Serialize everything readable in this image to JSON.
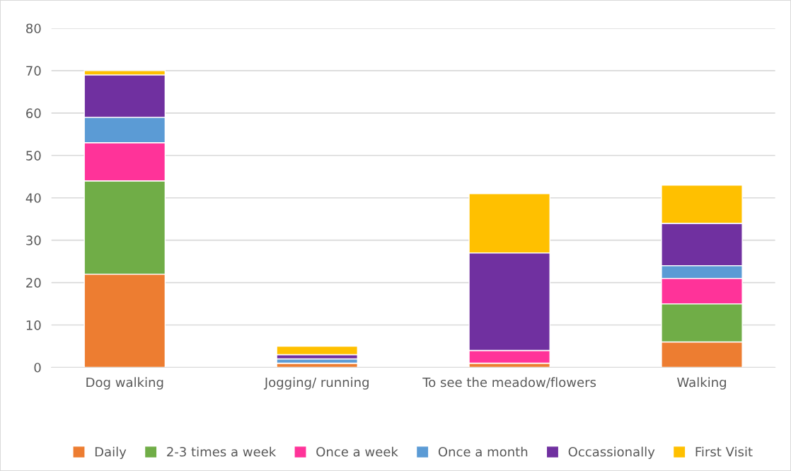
{
  "chart_data": {
    "type": "bar",
    "stacked": true,
    "categories": [
      "Dog walking",
      "Jogging/ running",
      "To see the meadow/flowers",
      "Walking"
    ],
    "series": [
      {
        "name": "Daily",
        "color": "#ed7d31",
        "values": [
          22,
          1,
          1,
          6
        ]
      },
      {
        "name": "2-3 times a week",
        "color": "#70ad47",
        "values": [
          22,
          0,
          0,
          9
        ]
      },
      {
        "name": "Once a week",
        "color": "#ff3399",
        "values": [
          9,
          0,
          3,
          6
        ]
      },
      {
        "name": "Once a month",
        "color": "#5b9bd5",
        "values": [
          6,
          1,
          0,
          3
        ]
      },
      {
        "name": "Occassionally",
        "color": "#7030a0",
        "values": [
          10,
          1,
          23,
          10
        ]
      },
      {
        "name": "First Visit",
        "color": "#ffc000",
        "values": [
          1,
          2,
          14,
          9
        ]
      }
    ],
    "ylim": [
      0,
      80
    ],
    "yticks": [
      0,
      10,
      20,
      30,
      40,
      50,
      60,
      70,
      80
    ],
    "grid": "y",
    "legend": "bottom"
  }
}
